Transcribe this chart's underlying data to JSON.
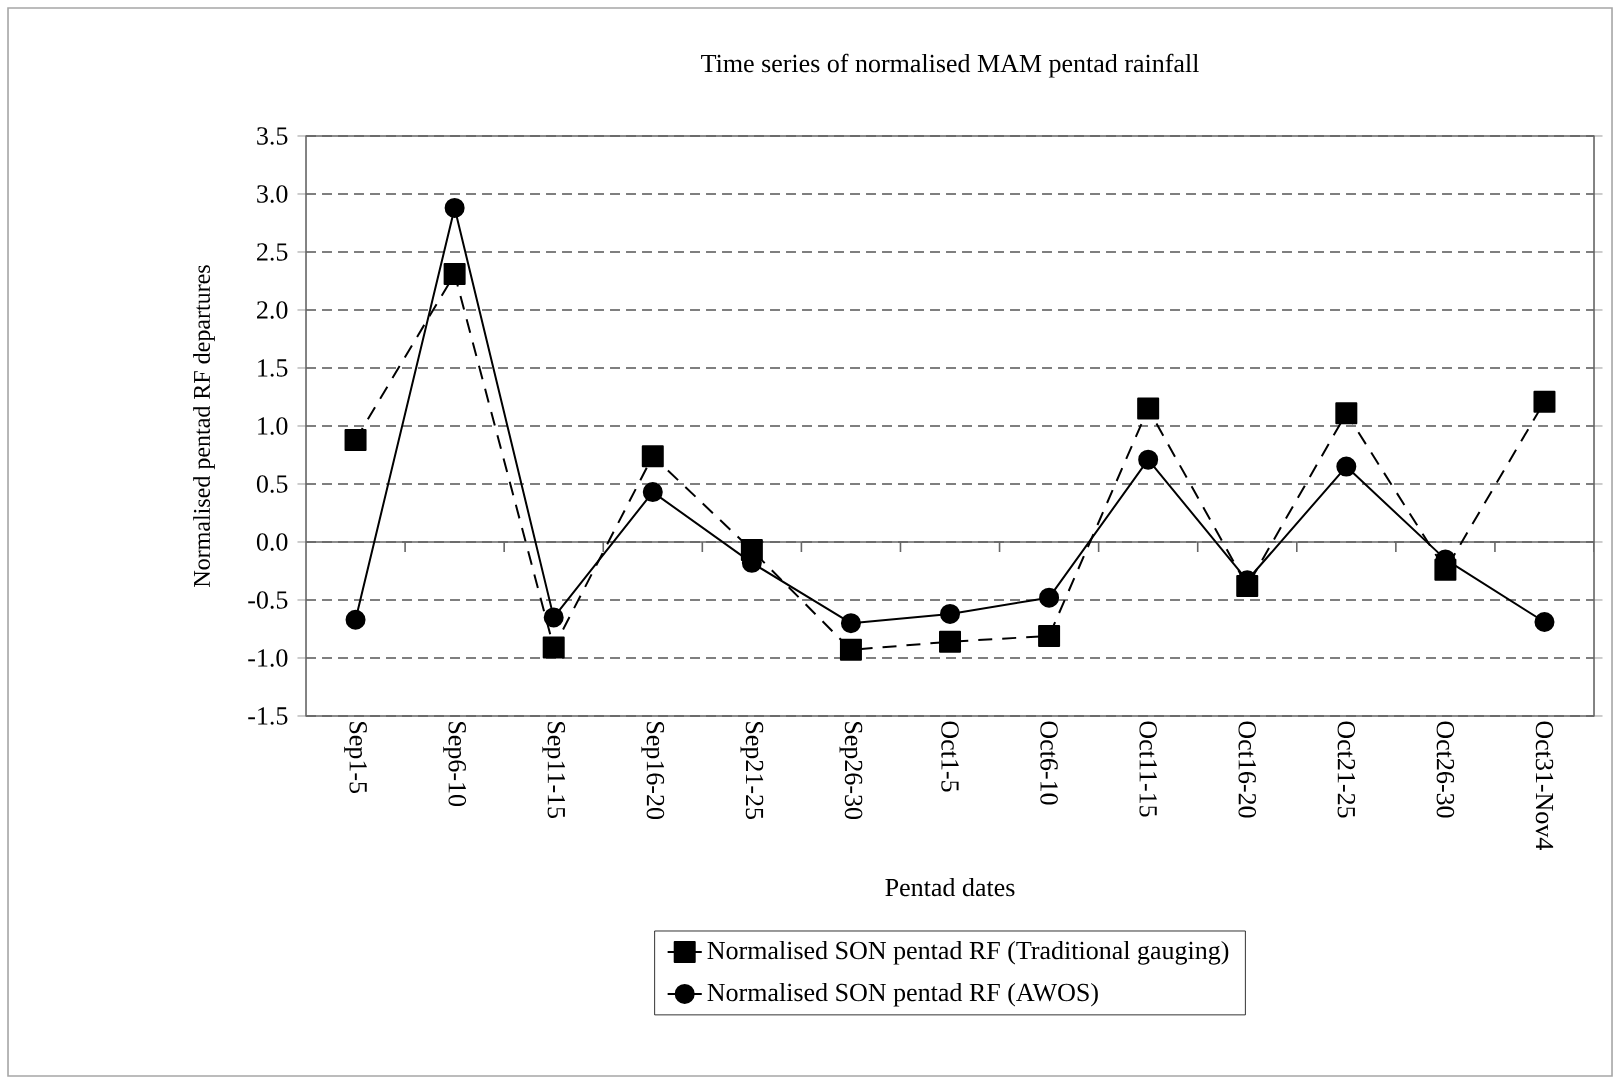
{
  "chart_data": {
    "type": "line",
    "title": "Time series of normalised MAM pentad rainfall",
    "xlabel": "Pentad dates",
    "ylabel": "Normalised pentad RF departures",
    "categories": [
      "Sep1-5",
      "Sep6-10",
      "Sep11-15",
      "Sep16-20",
      "Sep21-25",
      "Sep26-30",
      "Oct1-5",
      "Oct6-10",
      "Oct11-15",
      "Oct16-20",
      "Oct21-25",
      "Oct26-30",
      "Oct31-Nov4"
    ],
    "series": [
      {
        "name": "Normalised SON pentad RF  (Traditional gauging)",
        "color": "#000000",
        "marker": "square",
        "line_style": "dashed",
        "values": [
          0.88,
          2.31,
          -0.91,
          0.74,
          -0.07,
          -0.93,
          -0.86,
          -0.81,
          1.15,
          -0.38,
          1.11,
          -0.24,
          1.21
        ]
      },
      {
        "name": "Normalised SON pentad RF (AWOS)",
        "color": "#000000",
        "marker": "circle",
        "line_style": "solid",
        "values": [
          -0.67,
          2.88,
          -0.65,
          0.43,
          -0.18,
          -0.7,
          -0.62,
          -0.48,
          0.71,
          -0.33,
          0.65,
          -0.15,
          -0.69
        ]
      }
    ],
    "ylim": [
      -1.5,
      3.5
    ],
    "yticks": [
      {
        "value": -1.5,
        "label": "-1.5"
      },
      {
        "value": -1,
        "label": "-1.0"
      },
      {
        "value": -0.5,
        "label": "-0.5"
      },
      {
        "value": 0,
        "label": "0.0"
      },
      {
        "value": 0.5,
        "label": "0.5"
      },
      {
        "value": 1,
        "label": "1.0"
      },
      {
        "value": 1.5,
        "label": "1.5"
      },
      {
        "value": 2,
        "label": "2.0"
      },
      {
        "value": 2.5,
        "label": "2.5"
      },
      {
        "value": 3,
        "label": "3.0"
      },
      {
        "value": 3.5,
        "label": "3.5"
      }
    ],
    "grid": "y",
    "legend": "bottom"
  }
}
